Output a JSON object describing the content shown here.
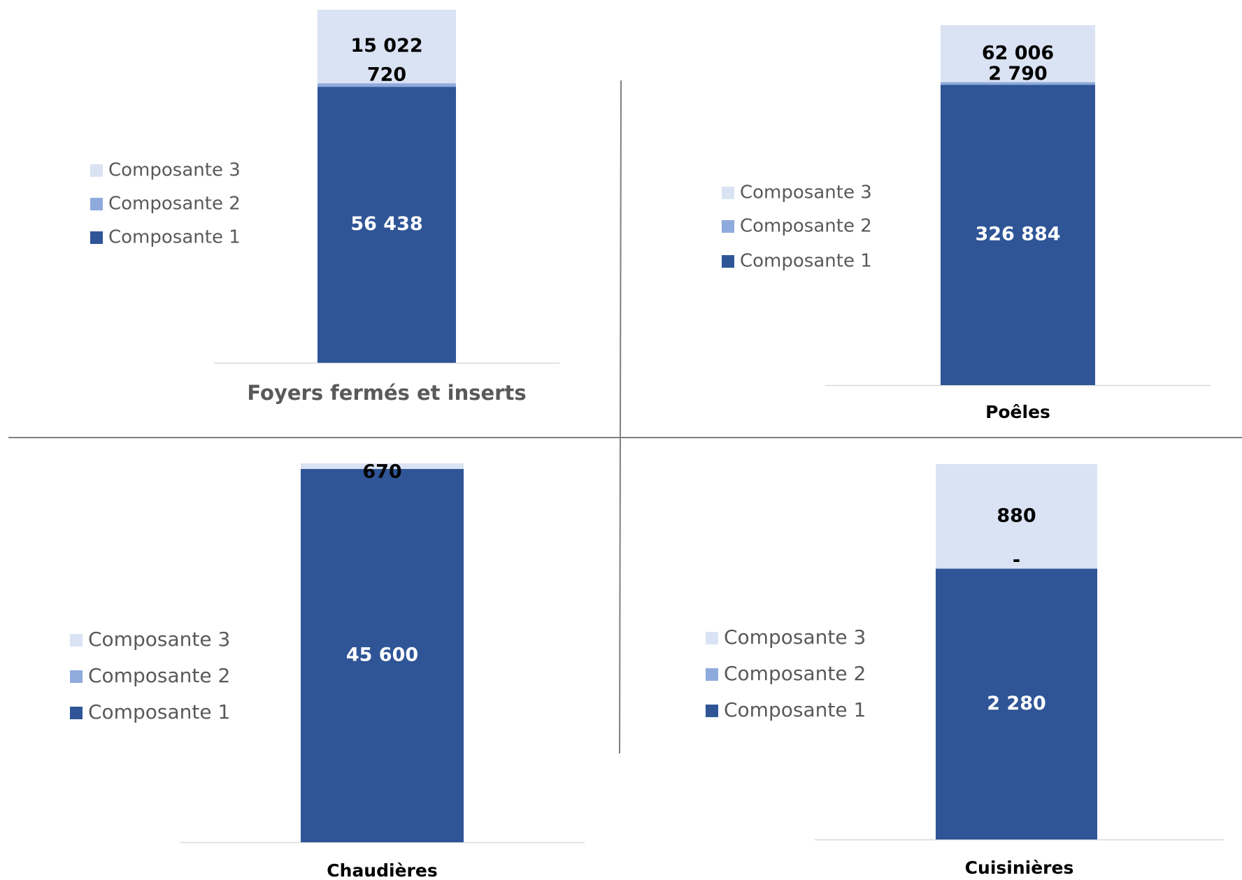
{
  "colors": {
    "composante_1": "#2F5597",
    "composante_2": "#8FAADC",
    "composante_3": "#DAE3F3",
    "axis_line": "#D9D9D9",
    "divider": "#7F7F7F",
    "label_dark": "#000000",
    "label_light": "#FFFFFF",
    "legend_text": "#595959"
  },
  "chart_data": [
    {
      "type": "bar",
      "stacked": true,
      "categories": [
        "Foyers fermés et inserts"
      ],
      "series": [
        {
          "name": "Composante 1",
          "values": [
            56438
          ],
          "labels": [
            "56 438"
          ]
        },
        {
          "name": "Composante 2",
          "values": [
            720
          ],
          "labels": [
            "720"
          ]
        },
        {
          "name": "Composante 3",
          "values": [
            15022
          ],
          "labels": [
            "15 022"
          ]
        }
      ],
      "legend_position": "left",
      "category_label_color": "#595959"
    },
    {
      "type": "bar",
      "stacked": true,
      "categories": [
        "Poêles"
      ],
      "series": [
        {
          "name": "Composante 1",
          "values": [
            326884
          ],
          "labels": [
            "326 884"
          ]
        },
        {
          "name": "Composante 2",
          "values": [
            2790
          ],
          "labels": [
            "2 790"
          ]
        },
        {
          "name": "Composante 3",
          "values": [
            62006
          ],
          "labels": [
            "62 006"
          ]
        }
      ],
      "legend_position": "left",
      "category_label_color": "#000000"
    },
    {
      "type": "bar",
      "stacked": true,
      "categories": [
        "Chaudières"
      ],
      "series": [
        {
          "name": "Composante 1",
          "values": [
            45600
          ],
          "labels": [
            "45 600"
          ]
        },
        {
          "name": "Composante 2",
          "values": [
            0
          ],
          "labels": [
            ""
          ]
        },
        {
          "name": "Composante 3",
          "values": [
            670
          ],
          "labels": [
            "670"
          ]
        }
      ],
      "legend_position": "left",
      "category_label_color": "#000000"
    },
    {
      "type": "bar",
      "stacked": true,
      "categories": [
        "Cuisinières"
      ],
      "series": [
        {
          "name": "Composante 1",
          "values": [
            2280
          ],
          "labels": [
            "2 280"
          ]
        },
        {
          "name": "Composante 2",
          "values": [
            0
          ],
          "labels": [
            "-"
          ]
        },
        {
          "name": "Composante 3",
          "values": [
            880
          ],
          "labels": [
            "880"
          ]
        }
      ],
      "legend_position": "left",
      "category_label_color": "#000000"
    }
  ]
}
